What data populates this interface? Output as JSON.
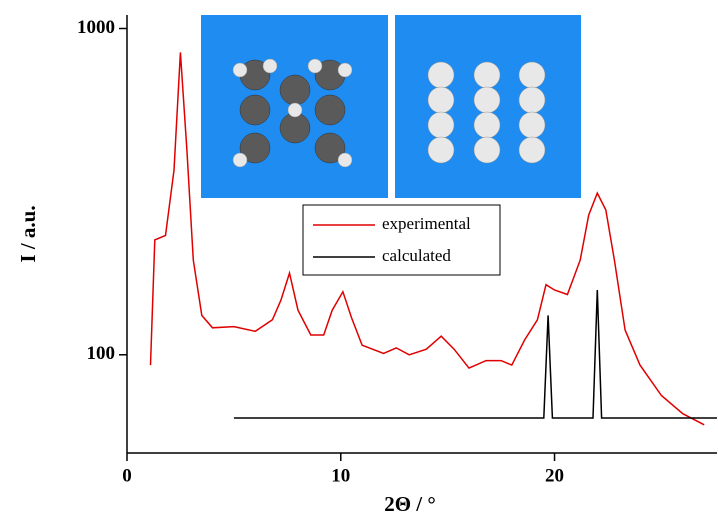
{
  "chart_data": {
    "type": "line",
    "x_label": "2Θ / °",
    "y_label": "I / a.u.",
    "xlim": [
      0,
      27.6
    ],
    "ylim": [
      50,
      1100
    ],
    "log_y": true,
    "xticks": [
      0,
      10,
      20
    ],
    "yticks": [
      100,
      1000
    ],
    "legend": "top-center",
    "series": [
      {
        "name": "experimental",
        "color": "#e00000",
        "x": [
          1.1,
          1.3,
          1.8,
          2.2,
          2.5,
          2.8,
          3.1,
          3.5,
          4,
          5,
          6,
          6.8,
          7.2,
          7.6,
          8,
          8.6,
          9.2,
          9.6,
          10.1,
          10.5,
          11,
          12,
          12.6,
          13.2,
          14,
          14.7,
          15.3,
          16,
          16.8,
          17.5,
          18,
          18.6,
          19.2,
          19.6,
          20,
          20.6,
          21.2,
          21.6,
          22,
          22.4,
          22.8,
          23.3,
          24,
          25,
          26,
          27
        ],
        "values": [
          93,
          225,
          232,
          368,
          845,
          424,
          195,
          132,
          121,
          122,
          118,
          128,
          147,
          178,
          137,
          115,
          115,
          137,
          156,
          130,
          107,
          101,
          105,
          100,
          104,
          114,
          104,
          91,
          96,
          96,
          93,
          111,
          128,
          164,
          158,
          153,
          195,
          268,
          313,
          278,
          195,
          119,
          93,
          75,
          66,
          61
        ]
      },
      {
        "name": "calculated",
        "color": "#000000",
        "x": [
          5,
          19.5,
          19.7,
          19.9,
          21.8,
          22,
          22.2,
          27.6
        ],
        "values": [
          64,
          64,
          132,
          64,
          64,
          158,
          64,
          64
        ]
      }
    ]
  }
}
